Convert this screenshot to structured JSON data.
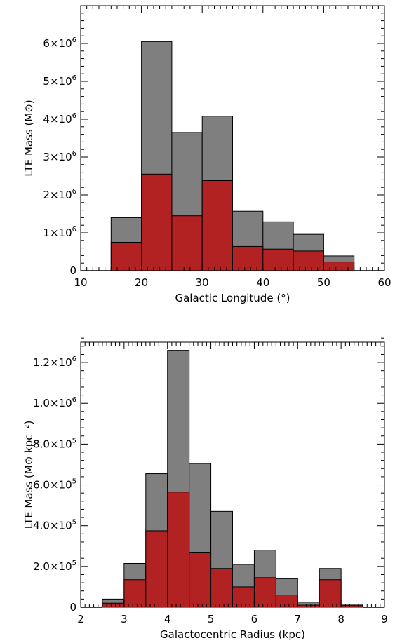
{
  "chart_data": [
    {
      "type": "bar",
      "title": "",
      "xlabel": "Galactic Longitude (°)",
      "ylabel": "LTE Mass (M⊙)",
      "xlim": [
        10,
        60
      ],
      "ylim": [
        0,
        7000000
      ],
      "x_major_ticks": [
        10,
        20,
        30,
        40,
        50,
        60
      ],
      "x_tick_labels": [
        "10",
        "20",
        "30",
        "40",
        "50",
        "60"
      ],
      "y_major_ticks": [
        0,
        1000000,
        2000000,
        3000000,
        4000000,
        5000000,
        6000000
      ],
      "y_tick_labels": [
        {
          "mant": "0",
          "exp": ""
        },
        {
          "mant": "1×10",
          "exp": "6"
        },
        {
          "mant": "2×10",
          "exp": "6"
        },
        {
          "mant": "3×10",
          "exp": "6"
        },
        {
          "mant": "4×10",
          "exp": "6"
        },
        {
          "mant": "5×10",
          "exp": "6"
        },
        {
          "mant": "6×10",
          "exp": "6"
        }
      ],
      "bin_edges": [
        15,
        20,
        25,
        30,
        35,
        40,
        45,
        50,
        55
      ],
      "series": [
        {
          "color": "#7f7f7f",
          "values": [
            1400000,
            6050000,
            3650000,
            4080000,
            1570000,
            1290000,
            960000,
            390000
          ]
        },
        {
          "color": "#b22222",
          "values": [
            750000,
            2550000,
            1450000,
            2380000,
            640000,
            570000,
            520000,
            230000
          ]
        }
      ]
    },
    {
      "type": "bar",
      "title": "",
      "xlabel": "Galactocentric Radius (kpc)",
      "ylabel": "LTE Mass (M⊙ kpc⁻²)",
      "xlim": [
        2,
        9
      ],
      "ylim": [
        0,
        1300000
      ],
      "x_major_ticks": [
        2,
        3,
        4,
        5,
        6,
        7,
        8,
        9
      ],
      "x_tick_labels": [
        "2",
        "3",
        "4",
        "5",
        "6",
        "7",
        "8",
        "9"
      ],
      "y_major_ticks": [
        0,
        200000,
        400000,
        600000,
        800000,
        1000000,
        1200000
      ],
      "y_tick_labels": [
        {
          "mant": "0",
          "exp": ""
        },
        {
          "mant": "2.0×10",
          "exp": "5"
        },
        {
          "mant": "4.0×10",
          "exp": "5"
        },
        {
          "mant": "6.0×10",
          "exp": "5"
        },
        {
          "mant": "8.0×10",
          "exp": "5"
        },
        {
          "mant": "1.0×10",
          "exp": "6"
        },
        {
          "mant": "1.2×10",
          "exp": "6"
        }
      ],
      "bin_edges": [
        2.5,
        3.0,
        3.5,
        4.0,
        4.5,
        5.0,
        5.5,
        6.0,
        6.5,
        7.0,
        7.5,
        8.0,
        8.5
      ],
      "series": [
        {
          "color": "#7f7f7f",
          "values": [
            40000,
            215000,
            655000,
            1260000,
            705000,
            470000,
            210000,
            280000,
            140000,
            25000,
            190000,
            15000
          ]
        },
        {
          "color": "#b22222",
          "values": [
            20000,
            135000,
            375000,
            565000,
            270000,
            190000,
            100000,
            145000,
            60000,
            10000,
            135000,
            8000
          ]
        }
      ]
    }
  ]
}
